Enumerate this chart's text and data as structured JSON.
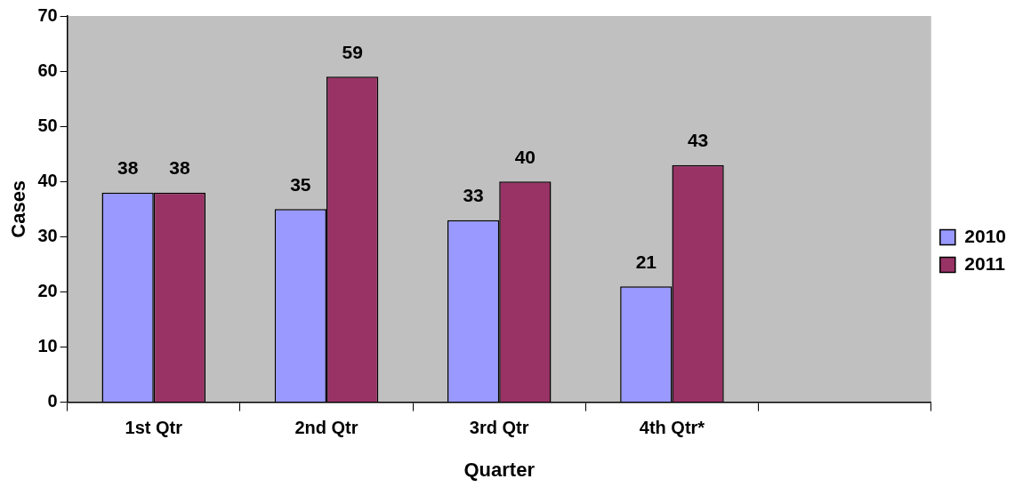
{
  "chart_data": {
    "type": "bar",
    "xlabel": "Quarter",
    "ylabel": "Cases",
    "categories": [
      "1st Qtr",
      "2nd Qtr",
      "3rd Qtr",
      "4th Qtr*",
      null
    ],
    "series": [
      {
        "name": "2010",
        "color": "#9999ff",
        "values": [
          38,
          35,
          33,
          21,
          null
        ]
      },
      {
        "name": "2011",
        "color": "#993366",
        "values": [
          38,
          59,
          40,
          43,
          null
        ]
      }
    ],
    "ylim": [
      0,
      70
    ],
    "yticks": [
      0,
      10,
      20,
      30,
      40,
      50,
      60,
      70
    ],
    "grid": false,
    "legend": "right",
    "data_labels": true
  }
}
